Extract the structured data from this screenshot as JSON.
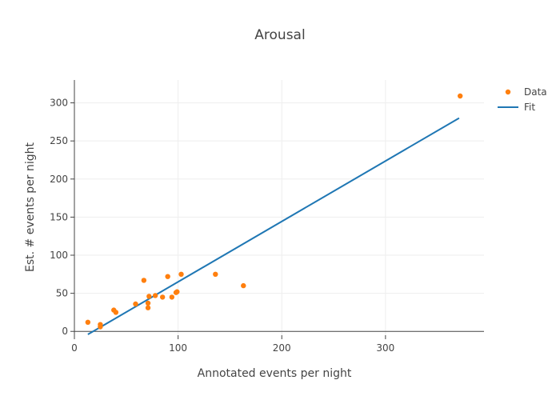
{
  "chart_data": {
    "type": "scatter",
    "title": "Arousal",
    "xlabel": "Annotated events per night",
    "ylabel": "Est. # events per night",
    "xlim": [
      0,
      395
    ],
    "ylim": [
      -5,
      330
    ],
    "xticks": [
      0,
      100,
      200,
      300
    ],
    "yticks": [
      0,
      50,
      100,
      150,
      200,
      250,
      300
    ],
    "grid": true,
    "legend_position": "top-right",
    "series": [
      {
        "name": "Data",
        "kind": "markers",
        "color": "#ff7f0e",
        "x": [
          13,
          25,
          25,
          38,
          40,
          59,
          67,
          71,
          71,
          72,
          78,
          85,
          90,
          94,
          98,
          99,
          103,
          136,
          163,
          372
        ],
        "y": [
          12,
          9,
          6,
          28,
          25,
          36,
          67,
          37,
          31,
          46,
          47,
          45,
          72,
          45,
          51,
          52,
          75,
          75,
          60,
          309
        ]
      },
      {
        "name": "Fit",
        "kind": "line",
        "color": "#1f77b4",
        "x": [
          13,
          371
        ],
        "y": [
          -4,
          280
        ]
      }
    ]
  }
}
